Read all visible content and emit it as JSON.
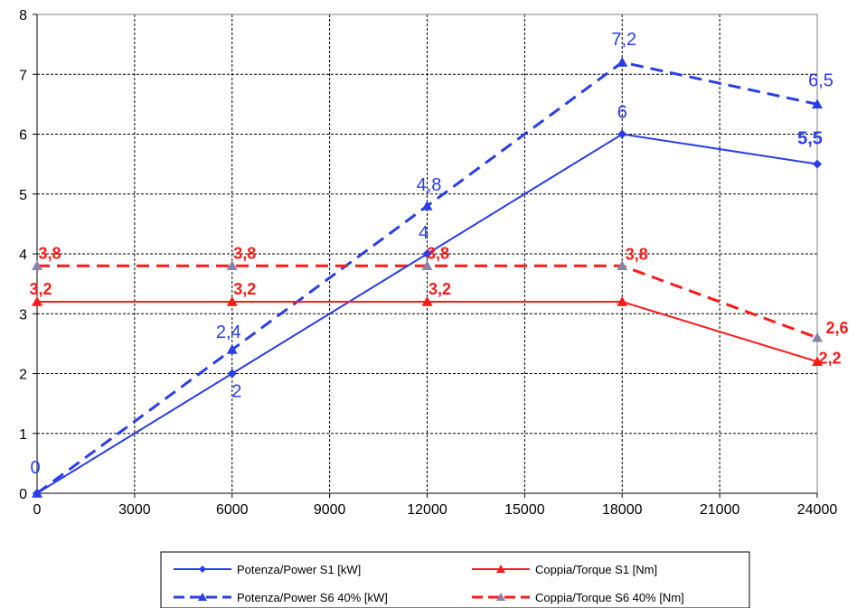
{
  "chart_data": {
    "type": "line",
    "title": "",
    "xlabel": "",
    "ylabel": "",
    "xlim": [
      0,
      24000
    ],
    "ylim": [
      0,
      8
    ],
    "xticks": [
      0,
      3000,
      6000,
      9000,
      12000,
      15000,
      18000,
      21000,
      24000
    ],
    "yticks": [
      0,
      1,
      2,
      3,
      4,
      5,
      6,
      7,
      8
    ],
    "x_tick_labels": [
      "0",
      "3000",
      "6000",
      "9000",
      "12000",
      "15000",
      "18000",
      "21000",
      "24000"
    ],
    "y_tick_labels": [
      "0",
      "1",
      "2",
      "3",
      "4",
      "5",
      "6",
      "7",
      "8"
    ],
    "grid": true,
    "legend_position": "bottom",
    "series": [
      {
        "name": "Potenza/Power S1 [kW]",
        "color": "#2a3ee8",
        "line_style": "solid",
        "marker": "diamond",
        "x": [
          0,
          6000,
          12000,
          18000,
          24000
        ],
        "y": [
          0,
          2,
          4,
          6,
          5.5
        ],
        "labels": [
          "0",
          "2",
          "4",
          "6",
          "5,5"
        ]
      },
      {
        "name": "Coppia/Torque S1 [Nm]",
        "color": "#ff1a1a",
        "line_style": "solid",
        "marker": "triangle",
        "x": [
          0,
          6000,
          12000,
          18000,
          24000
        ],
        "y": [
          3.2,
          3.2,
          3.2,
          3.2,
          2.2
        ],
        "labels": [
          "3,2",
          "3,2",
          "3,2",
          "",
          "2,2"
        ]
      },
      {
        "name": "Potenza/Power S6 40% [kW]",
        "color": "#2a3ee8",
        "line_style": "dashed",
        "marker": "triangle",
        "x": [
          0,
          6000,
          12000,
          18000,
          24000
        ],
        "y": [
          0,
          2.4,
          4.8,
          7.2,
          6.5
        ],
        "labels": [
          "",
          "2,4",
          "4,8",
          "7,2",
          "6,5"
        ]
      },
      {
        "name": "Coppia/Torque S6 40% [Nm]",
        "color": "#ff1a1a",
        "line_style": "dashed",
        "marker": "triangle",
        "marker_color": "#8a82a8",
        "x": [
          0,
          6000,
          12000,
          18000,
          24000
        ],
        "y": [
          3.8,
          3.8,
          3.8,
          3.8,
          2.6
        ],
        "labels": [
          "3,8",
          "3,8",
          "3,8",
          "3,8",
          "2,6"
        ]
      }
    ]
  }
}
